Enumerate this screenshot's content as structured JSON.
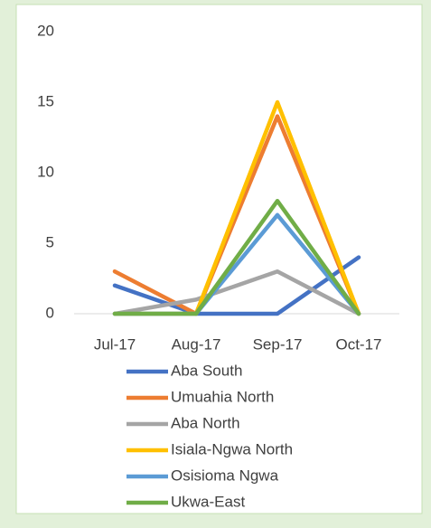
{
  "chart_data": {
    "type": "line",
    "categories": [
      "Jul-17",
      "Aug-17",
      "Sep-17",
      "Oct-17"
    ],
    "series": [
      {
        "name": "Aba South",
        "color": "#4472c4",
        "values": [
          2,
          0,
          0,
          4
        ]
      },
      {
        "name": "Umuahia North",
        "color": "#ed7d31",
        "values": [
          3,
          0,
          14,
          0
        ]
      },
      {
        "name": "Aba North",
        "color": "#a5a5a5",
        "values": [
          0,
          1,
          3,
          0
        ]
      },
      {
        "name": "Isiala-Ngwa North",
        "color": "#ffc000",
        "values": [
          0,
          0,
          15,
          0
        ]
      },
      {
        "name": "Osisioma Ngwa",
        "color": "#5b9bd5",
        "values": [
          0,
          0,
          7,
          0
        ]
      },
      {
        "name": "Ukwa-East",
        "color": "#70ad47",
        "values": [
          0,
          0,
          8,
          0
        ]
      }
    ],
    "ylim": [
      0,
      20
    ],
    "yticks": [
      0,
      5,
      10,
      15,
      20
    ],
    "grid": false,
    "legend": "bottom"
  }
}
